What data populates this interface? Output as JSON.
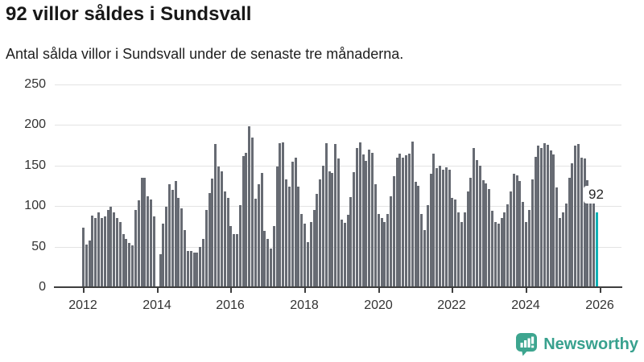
{
  "header": {
    "title": "92 villor såldes i Sundsvall",
    "subtitle": "Antal sålda villor i Sundsvall under de senaste tre månaderna."
  },
  "chart_data": {
    "type": "bar",
    "title": "92 villor såldes i Sundsvall",
    "subtitle": "Antal sålda villor i Sundsvall under de senaste tre månaderna.",
    "x_start": "2012-01",
    "frequency": "monthly",
    "values": [
      73,
      53,
      58,
      88,
      85,
      92,
      85,
      87,
      95,
      99,
      92,
      85,
      80,
      65,
      60,
      55,
      52,
      95,
      107,
      135,
      135,
      112,
      108,
      87,
      0,
      41,
      78,
      99,
      127,
      120,
      131,
      110,
      97,
      70,
      45,
      45,
      43,
      43,
      50,
      60,
      95,
      116,
      134,
      177,
      149,
      143,
      118,
      110,
      75,
      65,
      65,
      101,
      162,
      166,
      198,
      185,
      109,
      127,
      141,
      69,
      60,
      48,
      75,
      149,
      178,
      179,
      133,
      124,
      155,
      160,
      124,
      90,
      78,
      56,
      80,
      95,
      115,
      133,
      150,
      178,
      143,
      141,
      177,
      159,
      83,
      79,
      89,
      111,
      142,
      172,
      179,
      164,
      156,
      170,
      166,
      127,
      90,
      85,
      80,
      90,
      112,
      137,
      160,
      165,
      160,
      163,
      165,
      180,
      130,
      125,
      90,
      70,
      101,
      140,
      165,
      147,
      150,
      145,
      148,
      145,
      110,
      108,
      92,
      80,
      92,
      118,
      135,
      172,
      157,
      150,
      132,
      128,
      121,
      94,
      80,
      78,
      85,
      92,
      102,
      118,
      140,
      138,
      131,
      105,
      80,
      95,
      133,
      161,
      175,
      172,
      178,
      176,
      169,
      164,
      123,
      85,
      92,
      103,
      135,
      153,
      175,
      177,
      160,
      159,
      132,
      110,
      103,
      92
    ],
    "highlight_index": 167,
    "annotation": {
      "text": "92",
      "target": "last-bar"
    },
    "xticks": [
      2012,
      2014,
      2016,
      2018,
      2020,
      2022,
      2024,
      2026
    ],
    "yticks": [
      0,
      50,
      100,
      150,
      200,
      250
    ],
    "ylim": [
      0,
      250
    ],
    "grid": "horizontal",
    "legend": "none",
    "bar_color": "#676b73",
    "highlight_color": "#10b1b5"
  },
  "branding": {
    "logo_text": "Newsworthy",
    "logo_color": "#38a18e"
  }
}
